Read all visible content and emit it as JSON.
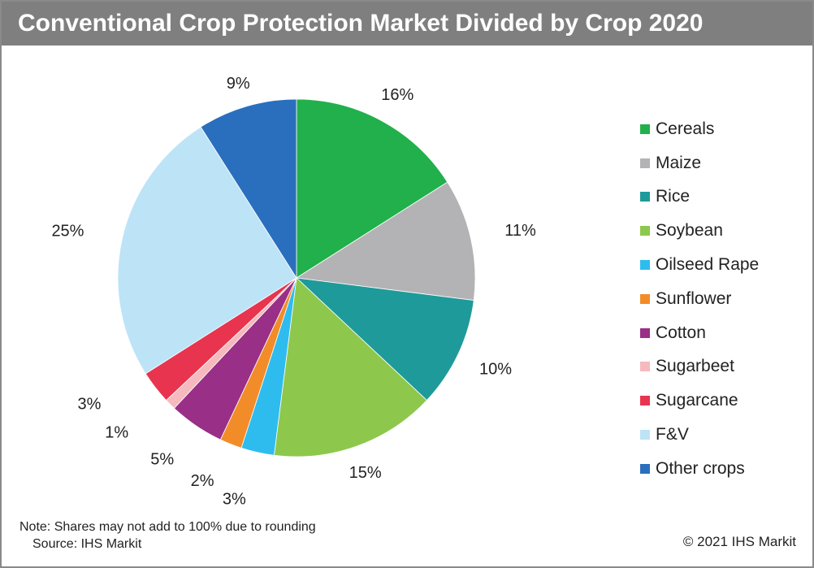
{
  "title": "Conventional Crop Protection Market Divided by Crop 2020",
  "note": "Note: Shares may not add to 100% due to rounding",
  "source": "Source: IHS Markit",
  "copyright": "© 2021 IHS Markit",
  "chart_data": {
    "type": "pie",
    "title": "Conventional Crop Protection Market Divided by Crop 2020",
    "legend_position": "right",
    "start": "12 o'clock, clockwise",
    "slices": [
      {
        "name": "Cereals",
        "value": 16,
        "label": "16%",
        "color": "#21b04b"
      },
      {
        "name": "Maize",
        "value": 11,
        "label": "11%",
        "color": "#b3b3b5"
      },
      {
        "name": "Rice",
        "value": 10,
        "label": "10%",
        "color": "#1f9a9a"
      },
      {
        "name": "Soybean",
        "value": 15,
        "label": "15%",
        "color": "#8dc84c"
      },
      {
        "name": "Oilseed Rape",
        "value": 3,
        "label": "3%",
        "color": "#2ebcef"
      },
      {
        "name": "Sunflower",
        "value": 2,
        "label": "2%",
        "color": "#f28c28"
      },
      {
        "name": "Cotton",
        "value": 5,
        "label": "5%",
        "color": "#992f86"
      },
      {
        "name": "Sugarbeet",
        "value": 1,
        "label": "1%",
        "color": "#f6b9bd"
      },
      {
        "name": "Sugarcane",
        "value": 3,
        "label": "3%",
        "color": "#e8344f"
      },
      {
        "name": "F&V",
        "value": 25,
        "label": "25%",
        "color": "#bde3f7"
      },
      {
        "name": "Other crops",
        "value": 9,
        "label": "9%",
        "color": "#2a6fbd"
      }
    ]
  }
}
